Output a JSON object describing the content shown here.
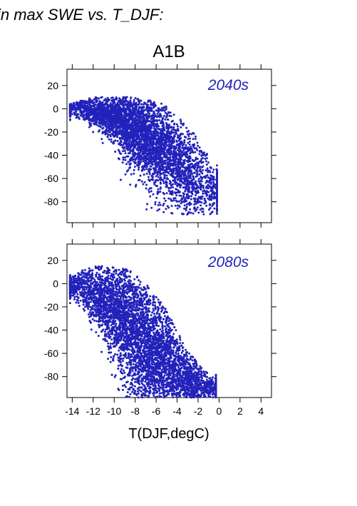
{
  "heading": "in max SWE vs. T_DJF:",
  "scenario": "A1B",
  "colors": {
    "points": "#2222bb",
    "period_label": "#2222bb"
  },
  "chart_data": {
    "type": "scatter",
    "xlabel": "T(DJF,degC)",
    "xlim": [
      -14.5,
      5
    ],
    "xticks": [
      -14,
      -12,
      -10,
      -8,
      -6,
      -4,
      -2,
      0,
      2,
      4
    ],
    "xticklabels": [
      "-14",
      "-12",
      "-10",
      "-8",
      "-6",
      "-4",
      "-2",
      "0",
      "2",
      "4"
    ],
    "ylim": [
      -98,
      34
    ],
    "yticks": [
      20,
      0,
      -20,
      -40,
      -60,
      -80
    ],
    "yticklabels": [
      "20",
      "0",
      "-20",
      "-40",
      "-60",
      "-80"
    ],
    "panels": [
      {
        "label": "2040s",
        "point_cloud": {
          "x_range": [
            -14.2,
            -0.2
          ],
          "y_range": [
            -91,
            11
          ],
          "upper_envelope": [
            [
              -14.2,
              4
            ],
            [
              -13,
              8
            ],
            [
              -12,
              10
            ],
            [
              -10,
              10
            ],
            [
              -8,
              10
            ],
            [
              -6,
              8
            ],
            [
              -5,
              2
            ],
            [
              -4,
              -6
            ],
            [
              -3,
              -14
            ],
            [
              -2,
              -26
            ],
            [
              -0.5,
              -48
            ]
          ],
          "center_trend": [
            [
              -13,
              1
            ],
            [
              -11,
              -4
            ],
            [
              -9,
              -14
            ],
            [
              -7,
              -24
            ],
            [
              -5,
              -36
            ],
            [
              -3,
              -55
            ],
            [
              -1,
              -68
            ]
          ],
          "n_points": 4200
        }
      },
      {
        "label": "2080s",
        "point_cloud": {
          "x_range": [
            -14.2,
            -0.3
          ],
          "y_range": [
            -98,
            15
          ],
          "upper_envelope": [
            [
              -14.2,
              8
            ],
            [
              -13,
              12
            ],
            [
              -12,
              15
            ],
            [
              -10,
              15
            ],
            [
              -8,
              10
            ],
            [
              -7,
              2
            ],
            [
              -6,
              -10
            ],
            [
              -5,
              -22
            ],
            [
              -4,
              -40
            ],
            [
              -3,
              -58
            ],
            [
              -1,
              -78
            ]
          ],
          "center_trend": [
            [
              -13,
              -2
            ],
            [
              -11,
              -14
            ],
            [
              -9,
              -34
            ],
            [
              -7,
              -52
            ],
            [
              -5,
              -70
            ],
            [
              -3,
              -85
            ],
            [
              -1,
              -90
            ]
          ],
          "n_points": 5200
        }
      }
    ]
  }
}
